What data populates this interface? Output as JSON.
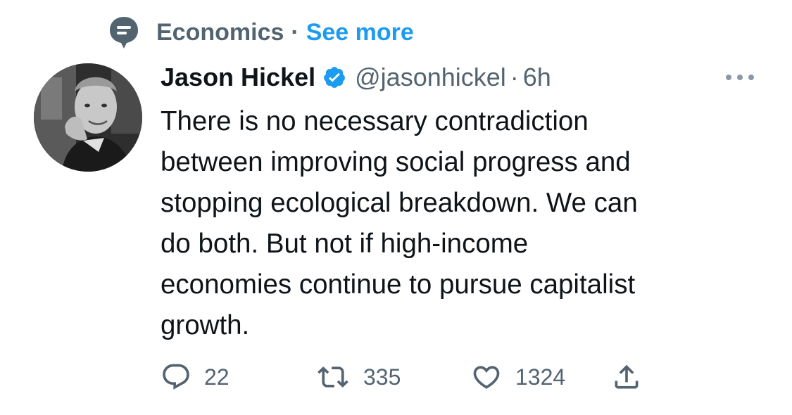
{
  "topic": {
    "label": "Economics",
    "separator": "·",
    "see_more": "See more",
    "icon": "topic-icon"
  },
  "author": {
    "name": "Jason Hickel",
    "verified": true,
    "handle": "@jasonhickel",
    "separator": "·",
    "time": "6h"
  },
  "tweet": {
    "text": "There is no necessary contradiction\nbetween improving social progress and\nstopping ecological breakdown.  We can\ndo both.  But not if high-income\neconomies continue to pursue capitalist\ngrowth."
  },
  "actions": {
    "reply_count": "22",
    "retweet_count": "335",
    "like_count": "1324"
  },
  "colors": {
    "accent": "#1d9bf0",
    "secondary_text": "#536471",
    "primary_text": "#0f1419"
  }
}
